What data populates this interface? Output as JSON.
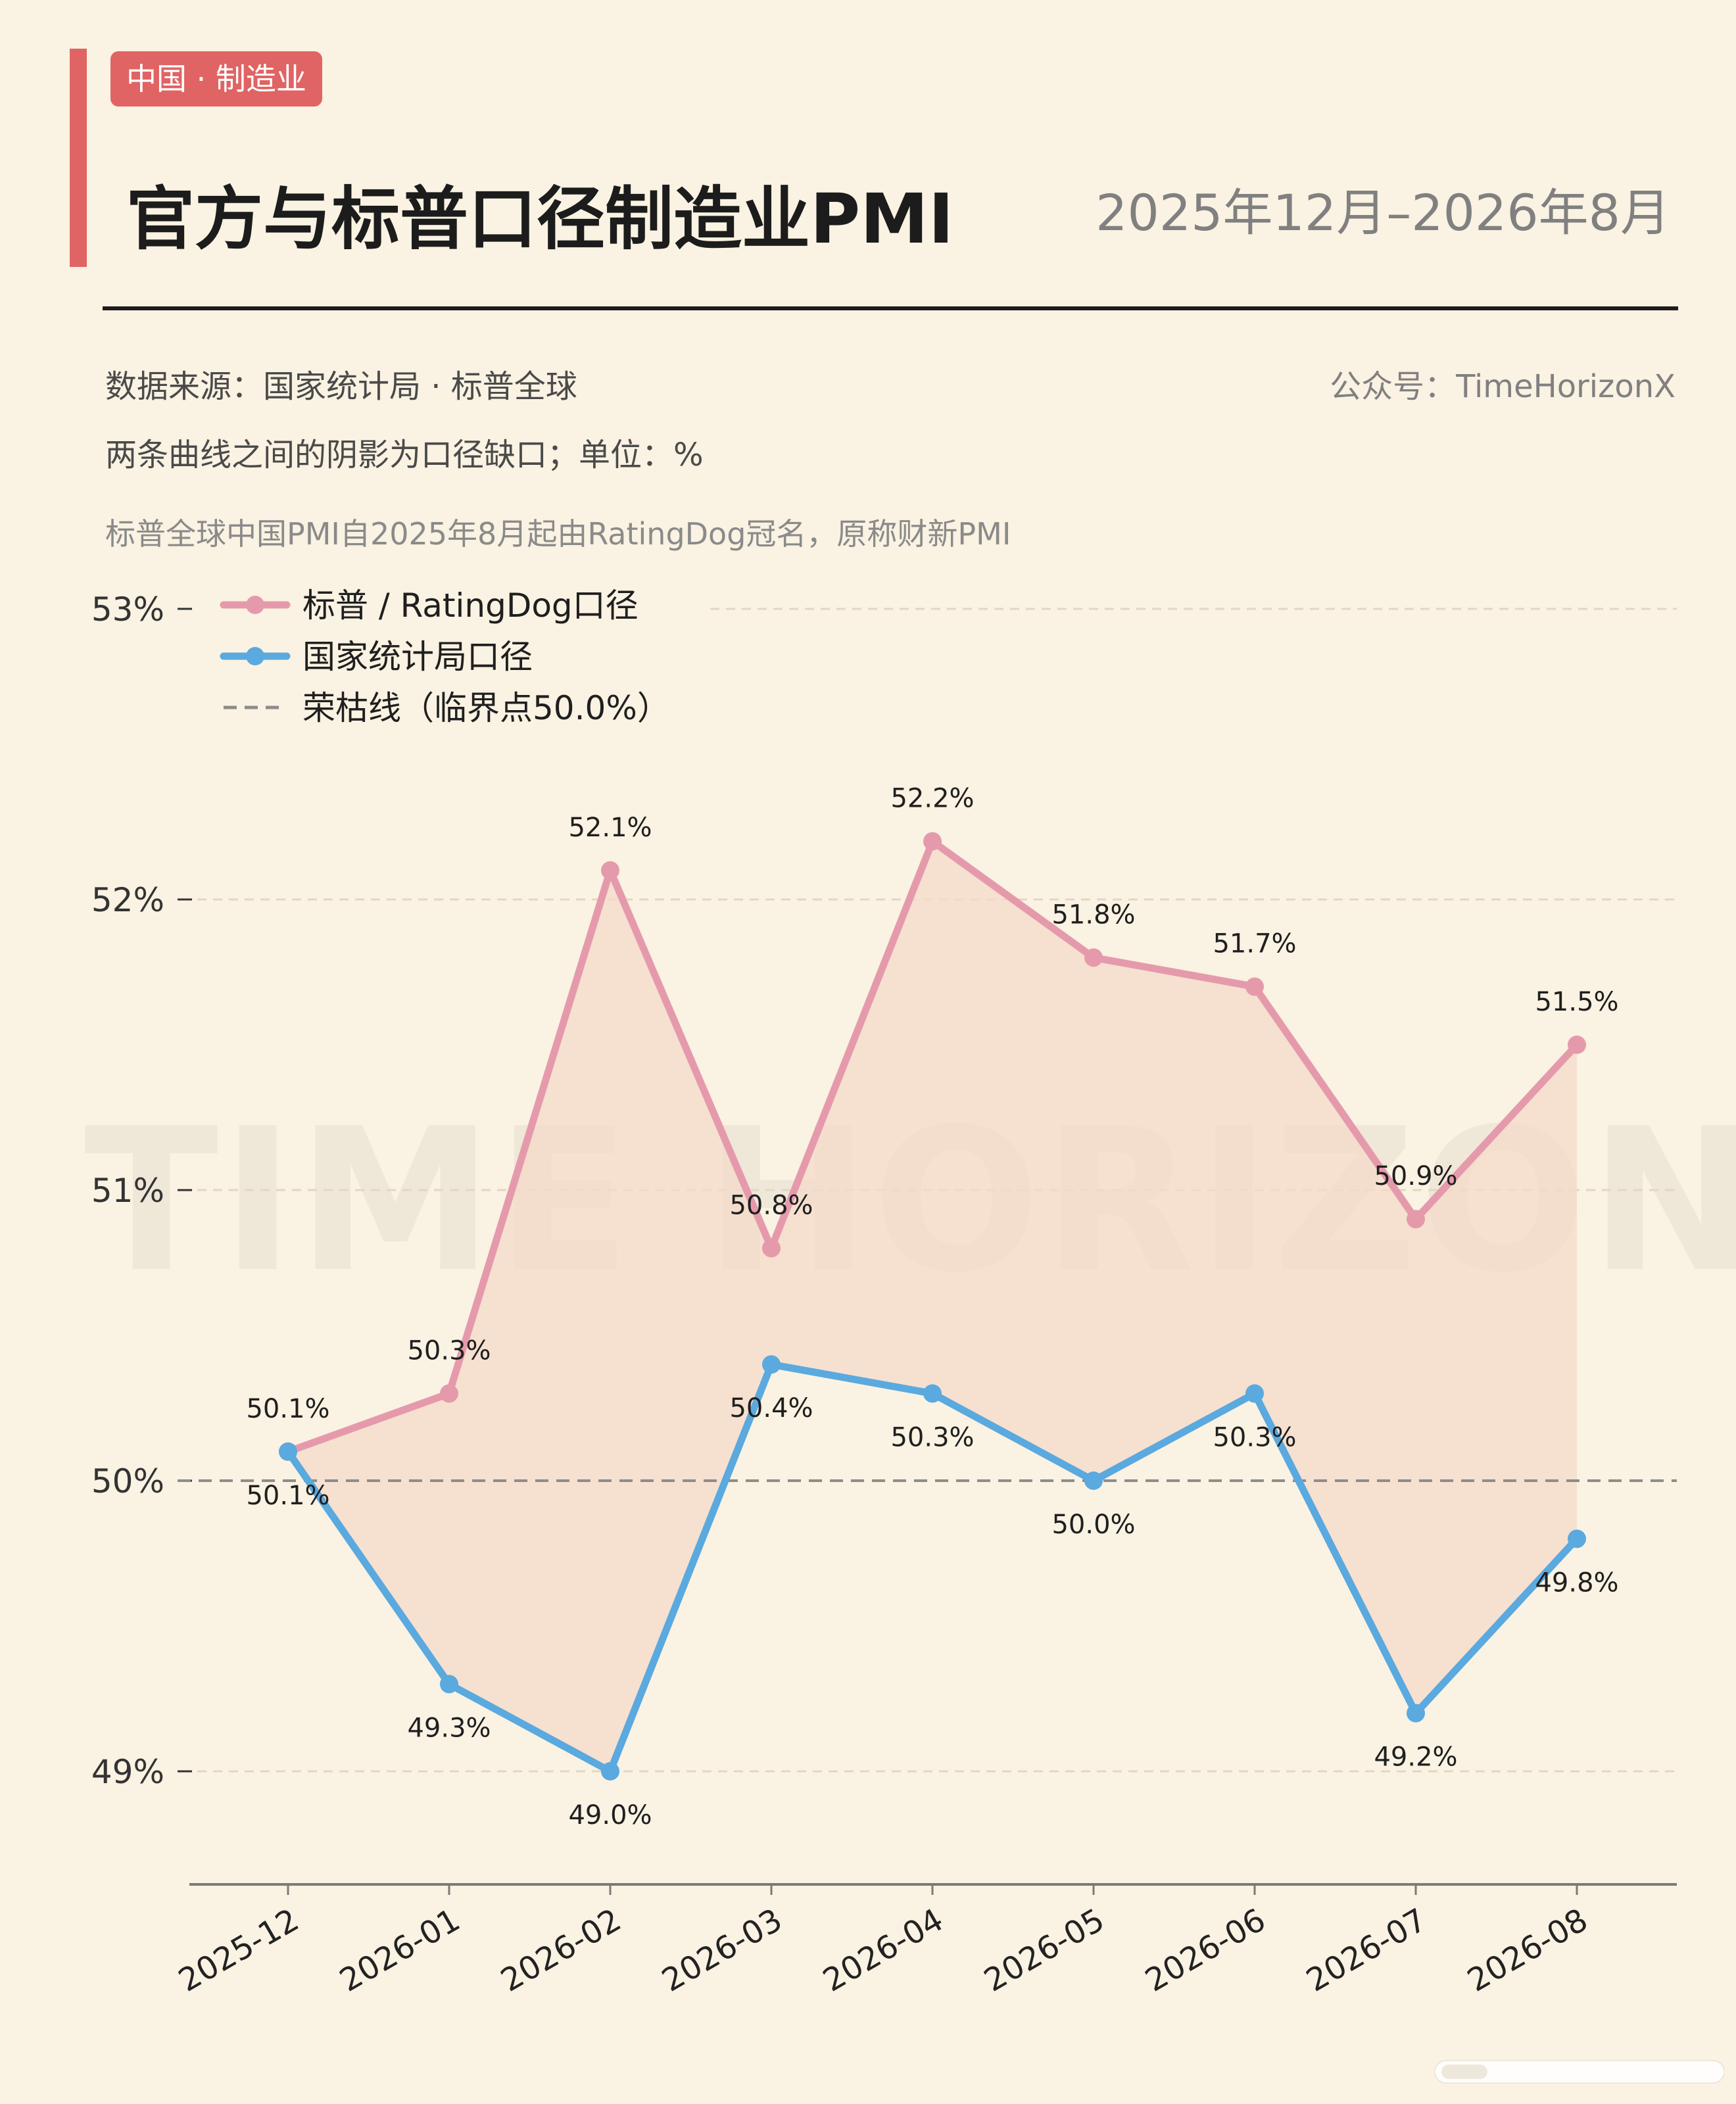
{
  "header": {
    "tag": "中国 · 制造业",
    "title": "官方与标普口径制造业PMI",
    "period": "2025年12月–2026年8月"
  },
  "meta": {
    "source": "数据来源：国家统计局 · 标普全球",
    "account": "公众号：TimeHorizonX",
    "shade_note": "两条曲线之间的阴影为口径缺口；单位：%",
    "rename_note": "标普全球中国PMI自2025年8月起由RatingDog冠名，原称财新PMI"
  },
  "watermark": "TIME HORIZON",
  "colors": {
    "accent": "#e06464",
    "sp_line": "#e59aac",
    "official_line": "#5aa9df",
    "gap_fill": "#f4d9c9",
    "threshold": "#8c8c8c",
    "background": "#faf2e2"
  },
  "chart_data": {
    "type": "line",
    "title": "官方与标普口径制造业PMI",
    "xlabel": "",
    "ylabel": "",
    "categories": [
      "2025-12",
      "2026-01",
      "2026-02",
      "2026-03",
      "2026-04",
      "2026-05",
      "2026-06",
      "2026-07",
      "2026-08"
    ],
    "series": [
      {
        "name": "标普 / RatingDog口径",
        "color": "#e59aac",
        "values": [
          50.1,
          50.3,
          52.1,
          50.8,
          52.2,
          51.8,
          51.7,
          50.9,
          51.5
        ]
      },
      {
        "name": "国家统计局口径",
        "color": "#5aa9df",
        "values": [
          50.1,
          49.3,
          49.0,
          50.4,
          50.3,
          50.0,
          50.3,
          49.2,
          49.8
        ]
      }
    ],
    "reference_line": {
      "name": "荣枯线（临界点50.0%）",
      "value": 50.0,
      "style": "dashed"
    },
    "ylim": [
      48.6,
      53.0
    ],
    "yticks": [
      49,
      50,
      51,
      52,
      53
    ],
    "ytick_labels": [
      "49%",
      "50%",
      "51%",
      "52%",
      "53%"
    ],
    "value_label_suffix": "%",
    "gap_shaded": true,
    "grid": true,
    "legend_position": "top-left"
  }
}
